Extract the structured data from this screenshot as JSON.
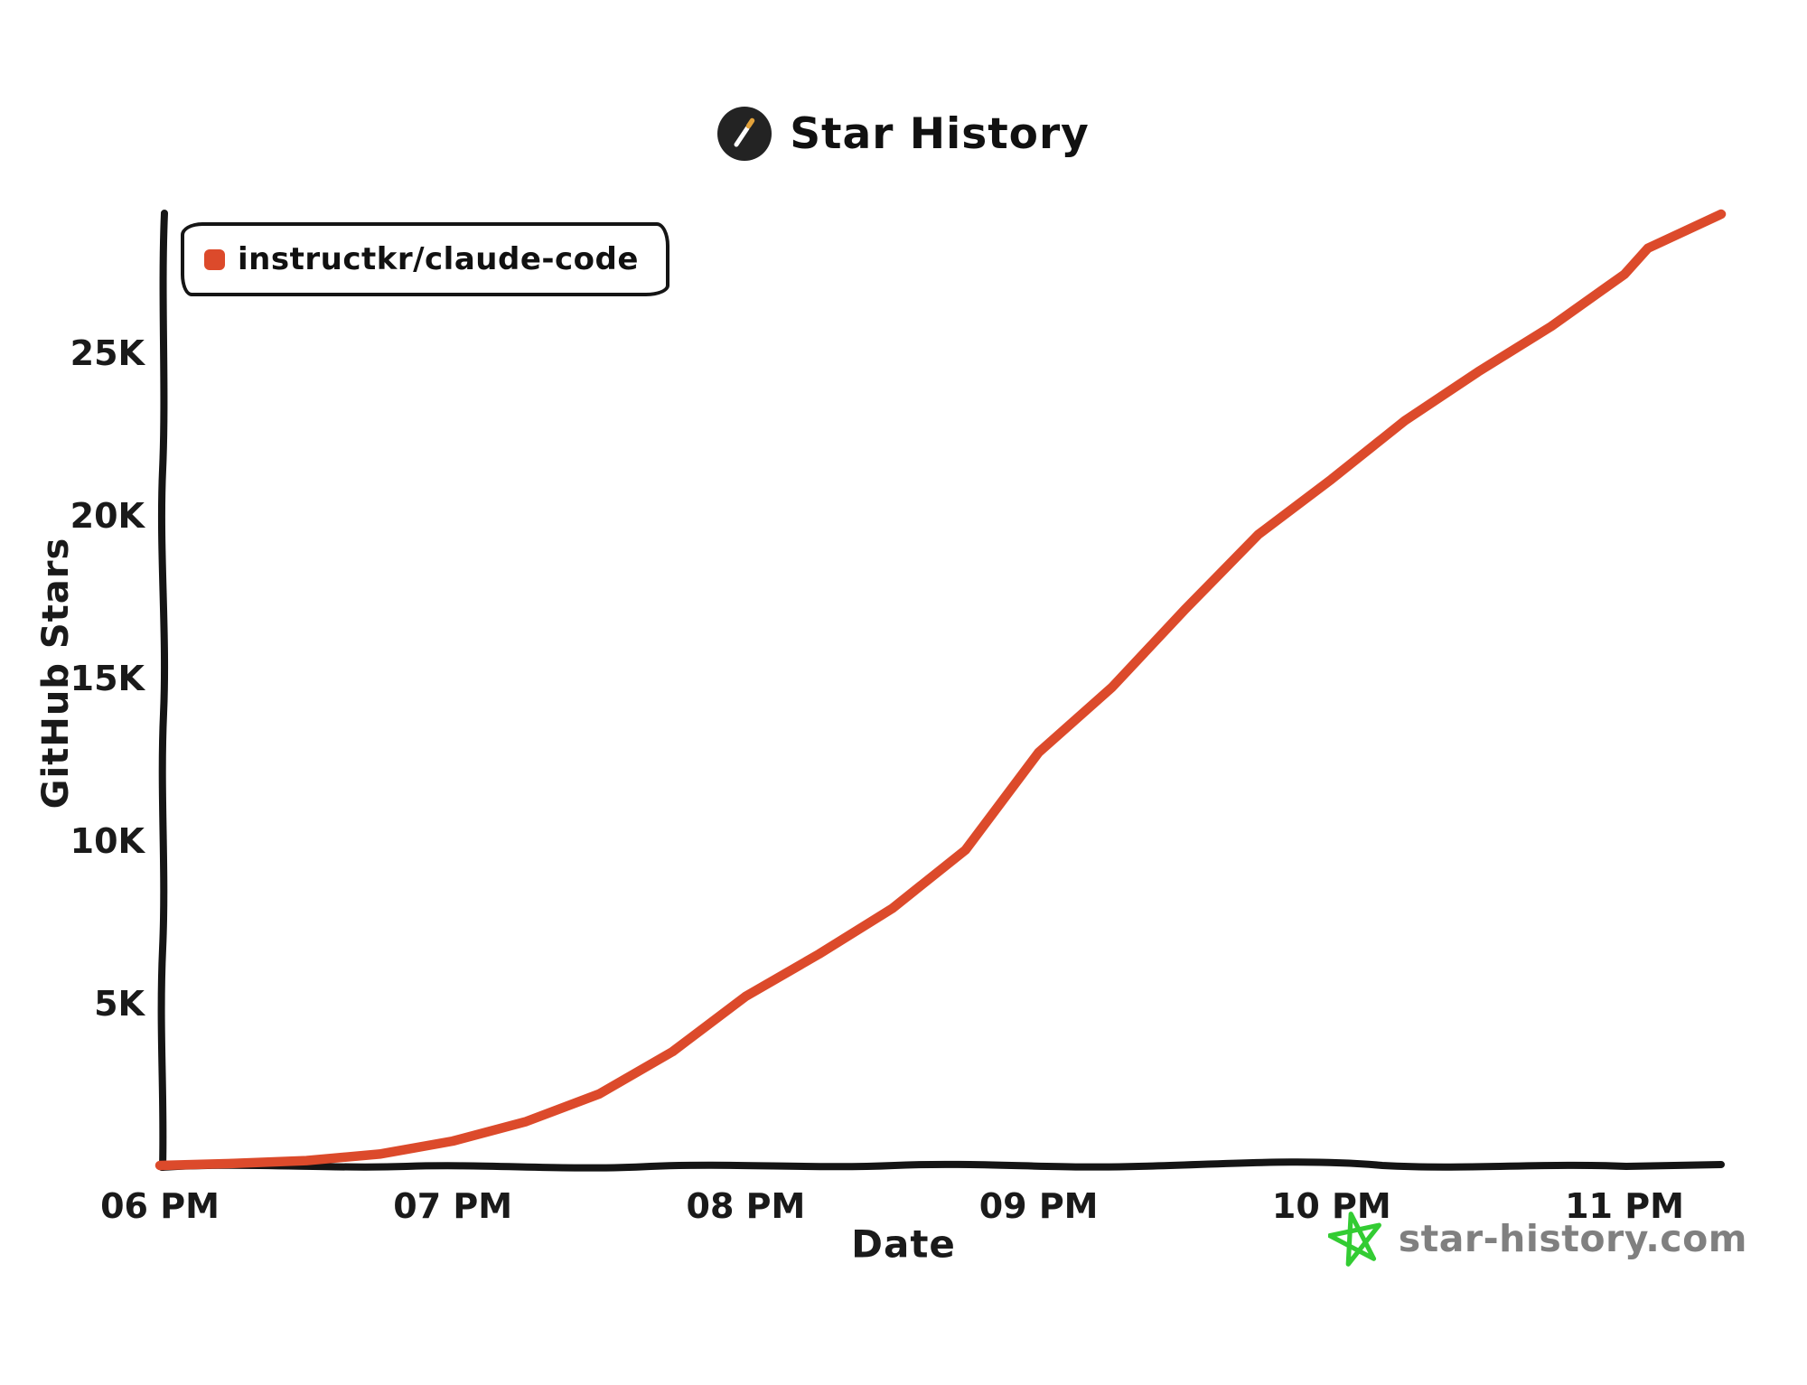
{
  "header": {
    "title": "Star History"
  },
  "legend": {
    "items": [
      {
        "label": "instructkr/claude-code",
        "color": "#DC4A2B"
      }
    ]
  },
  "axes": {
    "y_title": "GitHub Stars",
    "x_title": "Date"
  },
  "footer": {
    "site": "star-history.com",
    "text_color": "#808080",
    "star_color": "#33CC33"
  },
  "colors": {
    "line": "#DC4A2B",
    "ink": "#1a1a1a",
    "logo_circle": "#232323",
    "wand_tip": "#E2A23B"
  },
  "chart_data": {
    "type": "line",
    "title": "Star History",
    "xlabel": "Date",
    "ylabel": "GitHub Stars",
    "grid": false,
    "legend_position": "top-left",
    "x_unit": "hour of day (decimal, 24h)",
    "x_range": [
      18.0,
      23.33
    ],
    "y_range": [
      0,
      29500
    ],
    "x_ticks": [
      {
        "value": 18,
        "label": "06 PM"
      },
      {
        "value": 19,
        "label": "07 PM"
      },
      {
        "value": 20,
        "label": "08 PM"
      },
      {
        "value": 21,
        "label": "09 PM"
      },
      {
        "value": 22,
        "label": "10 PM"
      },
      {
        "value": 23,
        "label": "11 PM"
      }
    ],
    "y_ticks": [
      {
        "value": 5000,
        "label": "5K"
      },
      {
        "value": 10000,
        "label": "10K"
      },
      {
        "value": 15000,
        "label": "15K"
      },
      {
        "value": 20000,
        "label": "20K"
      },
      {
        "value": 25000,
        "label": "25K"
      }
    ],
    "series": [
      {
        "name": "instructkr/claude-code",
        "color": "#DC4A2B",
        "points": [
          [
            18.0,
            0
          ],
          [
            18.25,
            60
          ],
          [
            18.5,
            150
          ],
          [
            18.75,
            350
          ],
          [
            19.0,
            750
          ],
          [
            19.25,
            1350
          ],
          [
            19.5,
            2200
          ],
          [
            19.75,
            3500
          ],
          [
            20.0,
            5200
          ],
          [
            20.25,
            6500
          ],
          [
            20.5,
            7900
          ],
          [
            20.75,
            9700
          ],
          [
            21.0,
            12700
          ],
          [
            21.25,
            14700
          ],
          [
            21.5,
            17100
          ],
          [
            21.75,
            19400
          ],
          [
            22.0,
            21100
          ],
          [
            22.25,
            22900
          ],
          [
            22.5,
            24400
          ],
          [
            22.75,
            25800
          ],
          [
            23.0,
            27400
          ],
          [
            23.08,
            28200
          ],
          [
            23.33,
            29250
          ]
        ]
      }
    ]
  }
}
